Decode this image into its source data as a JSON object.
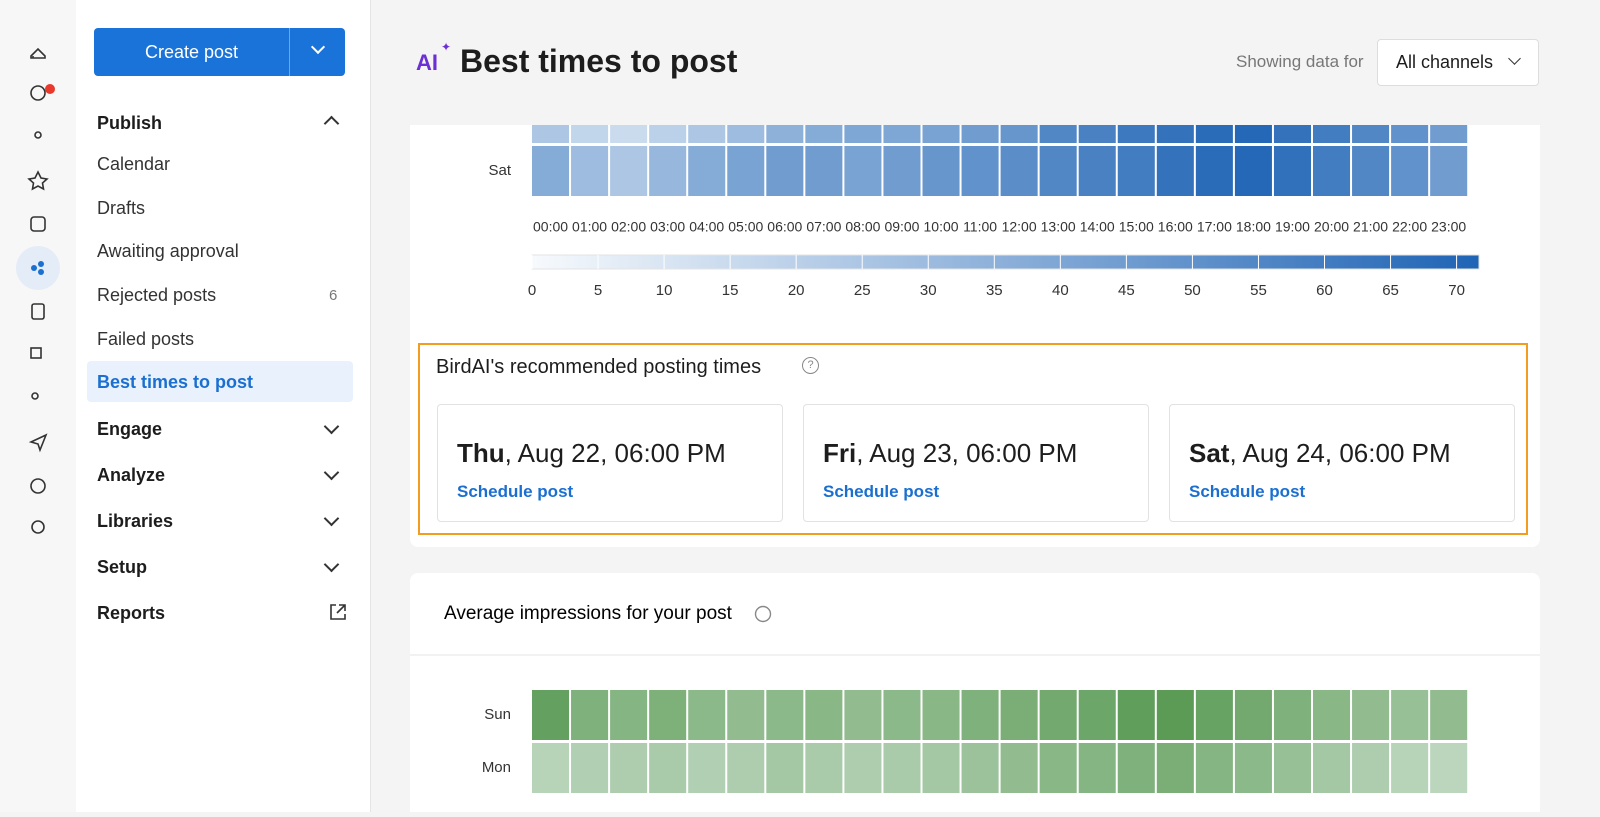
{
  "sidebar": {
    "create_button": "Create post",
    "publish": {
      "title": "Publish",
      "items": [
        "Calendar",
        "Drafts",
        "Awaiting approval",
        "Rejected posts",
        "Failed posts",
        "Best times to post"
      ],
      "rejected_count": 6
    },
    "sections": [
      "Engage",
      "Analyze",
      "Libraries",
      "Setup"
    ],
    "reports": "Reports"
  },
  "header": {
    "badge": "AI",
    "title": "Best times to post",
    "filter_label": "Showing data for",
    "filter_value": "All channels"
  },
  "heatmap_top": {
    "type": "heatmap",
    "rows": [
      null,
      "Sat"
    ],
    "columns": [
      "00:00",
      "01:00",
      "02:00",
      "03:00",
      "04:00",
      "05:00",
      "06:00",
      "07:00",
      "08:00",
      "09:00",
      "10:00",
      "11:00",
      "12:00",
      "13:00",
      "14:00",
      "15:00",
      "16:00",
      "17:00",
      "18:00",
      "19:00",
      "20:00",
      "21:00",
      "22:00",
      "23:00"
    ],
    "values": [
      [
        25,
        18,
        15,
        20,
        25,
        30,
        35,
        38,
        40,
        40,
        42,
        45,
        48,
        55,
        58,
        62,
        65,
        68,
        70,
        65,
        60,
        55,
        50,
        45
      ],
      [
        38,
        30,
        25,
        32,
        38,
        42,
        45,
        45,
        42,
        45,
        48,
        50,
        52,
        55,
        58,
        60,
        65,
        68,
        70,
        66,
        60,
        55,
        50,
        45
      ]
    ],
    "color": "#1f64b5",
    "clim": [
      0,
      72
    ],
    "cticks": [
      0,
      5,
      10,
      15,
      20,
      25,
      30,
      35,
      40,
      45,
      50,
      55,
      60,
      65,
      70
    ]
  },
  "recommendations": {
    "title": "BirdAI's recommended posting times",
    "cards": [
      {
        "day": "Thu",
        "date": ", Aug 22, 06:00 PM",
        "link": "Schedule post"
      },
      {
        "day": "Fri",
        "date": ", Aug 23, 06:00 PM",
        "link": "Schedule post"
      },
      {
        "day": "Sat",
        "date": ", Aug 24, 06:00 PM",
        "link": "Schedule post"
      }
    ]
  },
  "heatmap_bottom": {
    "type": "heatmap",
    "title": "Average impressions for your post",
    "rows": [
      "Sun",
      "Mon"
    ],
    "values": [
      [
        80,
        65,
        62,
        66,
        58,
        55,
        58,
        60,
        55,
        58,
        60,
        65,
        68,
        72,
        75,
        82,
        85,
        78,
        72,
        65,
        60,
        55,
        52,
        55
      ],
      [
        35,
        38,
        40,
        42,
        38,
        40,
        45,
        42,
        40,
        42,
        45,
        50,
        55,
        60,
        62,
        65,
        68,
        62,
        58,
        52,
        45,
        40,
        35,
        32
      ]
    ],
    "color": "#3f8a37",
    "clim": [
      0,
      100
    ]
  }
}
